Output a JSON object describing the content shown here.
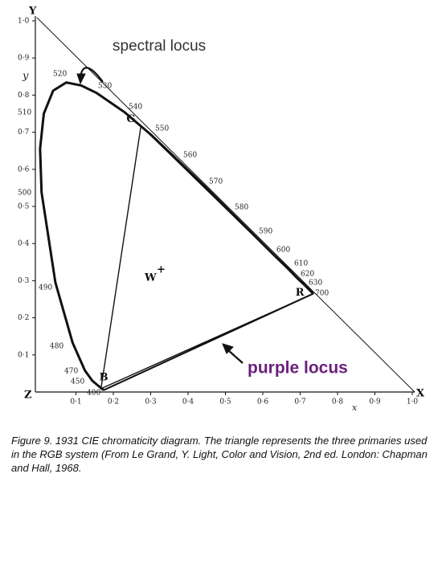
{
  "figure": {
    "axes": {
      "y_label": "Y",
      "x_label": "X",
      "origin_label": "Z",
      "y_symbol": "y",
      "x_symbol": "x",
      "x_ticks": [
        "0·1",
        "0·2",
        "0·3",
        "0·4",
        "0·5",
        "0·6",
        "0·7",
        "0·8",
        "0·9",
        "1·0"
      ],
      "y_ticks": [
        "1·0",
        "0·9",
        "0·8",
        "0·7",
        "0·6",
        "0·5",
        "0·4",
        "0·3",
        "0·2",
        "0·1"
      ]
    },
    "wavelengths": [
      "400",
      "450",
      "470",
      "480",
      "490",
      "500",
      "510",
      "520",
      "530",
      "540",
      "550",
      "560",
      "570",
      "580",
      "590",
      "600",
      "610",
      "620",
      "630",
      "700"
    ],
    "primaries": {
      "green": "G",
      "red": "R",
      "blue": "B",
      "white": "W",
      "white_mark": "+"
    },
    "annotations": {
      "spectral": "spectral locus",
      "purple": "purple locus"
    }
  },
  "caption": "Figure 9. 1931 CIE chromaticity diagram. The triangle represents the three primaries used in the RGB system (From Le Grand, Y. Light, Color and Vision, 2nd ed. London: Chapman and Hall, 1968."
}
